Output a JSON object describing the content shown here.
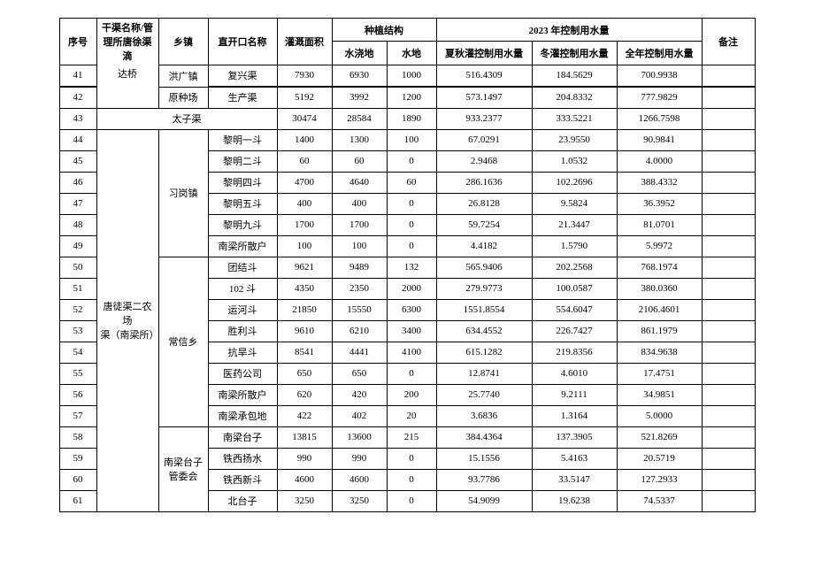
{
  "headers": {
    "seq": "序号",
    "mgr_line1": "干渠名称/管",
    "mgr_line2": "理所唐徐渠滴",
    "mgr_line3": "达桥",
    "town": "乡镇",
    "canal": "直开口名称",
    "area": "灌溉面积",
    "plant_group": "种植结构",
    "sj": "水浇地",
    "sd": "水地",
    "ctrl_group": "2023 年控制用水量",
    "xq": "夏秋灌控制用水量",
    "dg": "冬灌控制用水量",
    "qn": "全年控制用水量",
    "note": "备注"
  },
  "town_41": "洪广镇",
  "town_42": "原种场",
  "taizi": "太子渠",
  "town_xg": "习岗镇",
  "town_cx": "常信乡",
  "town_nl1": "南梁台子",
  "town_nl2": "管委会",
  "mgr_tx1": "唐徒渠二农场",
  "mgr_tx2": "渠（南梁所）",
  "rows": [
    {
      "seq": "41",
      "canal": "复兴渠",
      "area": "7930",
      "sj": "6930",
      "sd": "1000",
      "xq": "516.4309",
      "dg": "184.5629",
      "qn": "700.9938"
    },
    {
      "seq": "42",
      "canal": "生产渠",
      "area": "5192",
      "sj": "3992",
      "sd": "1200",
      "xq": "573.1497",
      "dg": "204.8332",
      "qn": "777.9829"
    },
    {
      "seq": "43",
      "canal": "",
      "area": "30474",
      "sj": "28584",
      "sd": "1890",
      "xq": "933.2377",
      "dg": "333.5221",
      "qn": "1266.7598"
    },
    {
      "seq": "44",
      "canal": "黎明一斗",
      "area": "1400",
      "sj": "1300",
      "sd": "100",
      "xq": "67.0291",
      "dg": "23.9550",
      "qn": "90.9841"
    },
    {
      "seq": "45",
      "canal": "黎明二斗",
      "area": "60",
      "sj": "60",
      "sd": "0",
      "xq": "2.9468",
      "dg": "1.0532",
      "qn": "4.0000"
    },
    {
      "seq": "46",
      "canal": "黎明四斗",
      "area": "4700",
      "sj": "4640",
      "sd": "60",
      "xq": "286.1636",
      "dg": "102.2696",
      "qn": "388.4332"
    },
    {
      "seq": "47",
      "canal": "黎明五斗",
      "area": "400",
      "sj": "400",
      "sd": "0",
      "xq": "26.8128",
      "dg": "9.5824",
      "qn": "36.3952"
    },
    {
      "seq": "48",
      "canal": "黎明九斗",
      "area": "1700",
      "sj": "1700",
      "sd": "0",
      "xq": "59.7254",
      "dg": "21.3447",
      "qn": "81.0701"
    },
    {
      "seq": "49",
      "canal": "南梁所散户",
      "area": "100",
      "sj": "100",
      "sd": "0",
      "xq": "4.4182",
      "dg": "1.5790",
      "qn": "5.9972"
    },
    {
      "seq": "50",
      "canal": "团结斗",
      "area": "9621",
      "sj": "9489",
      "sd": "132",
      "xq": "565.9406",
      "dg": "202.2568",
      "qn": "768.1974"
    },
    {
      "seq": "51",
      "canal": "102 斗",
      "area": "4350",
      "sj": "2350",
      "sd": "2000",
      "xq": "279.9773",
      "dg": "100.0587",
      "qn": "380.0360"
    },
    {
      "seq": "52",
      "canal": "运河斗",
      "area": "21850",
      "sj": "15550",
      "sd": "6300",
      "xq": "1551.8554",
      "dg": "554.6047",
      "qn": "2106.4601"
    },
    {
      "seq": "53",
      "canal": "胜利斗",
      "area": "9610",
      "sj": "6210",
      "sd": "3400",
      "xq": "634.4552",
      "dg": "226.7427",
      "qn": "861.1979"
    },
    {
      "seq": "54",
      "canal": "抗旱斗",
      "area": "8541",
      "sj": "4441",
      "sd": "4100",
      "xq": "615.1282",
      "dg": "219.8356",
      "qn": "834.9638"
    },
    {
      "seq": "55",
      "canal": "医药公司",
      "area": "650",
      "sj": "650",
      "sd": "0",
      "xq": "12.8741",
      "dg": "4.6010",
      "qn": "17.4751"
    },
    {
      "seq": "56",
      "canal": "南梁所散户",
      "area": "620",
      "sj": "420",
      "sd": "200",
      "xq": "25.7740",
      "dg": "9.2111",
      "qn": "34.9851"
    },
    {
      "seq": "57",
      "canal": "南梁承包地",
      "area": "422",
      "sj": "402",
      "sd": "20",
      "xq": "3.6836",
      "dg": "1.3164",
      "qn": "5.0000"
    },
    {
      "seq": "58",
      "canal": "南梁台子",
      "area": "13815",
      "sj": "13600",
      "sd": "215",
      "xq": "384.4364",
      "dg": "137.3905",
      "qn": "521.8269"
    },
    {
      "seq": "59",
      "canal": "铁西扬水",
      "area": "990",
      "sj": "990",
      "sd": "0",
      "xq": "15.1556",
      "dg": "5.4163",
      "qn": "20.5719"
    },
    {
      "seq": "60",
      "canal": "铁西新斗",
      "area": "4600",
      "sj": "4600",
      "sd": "0",
      "xq": "93.7786",
      "dg": "33.5147",
      "qn": "127.2933"
    },
    {
      "seq": "61",
      "canal": "北台子",
      "area": "3250",
      "sj": "3250",
      "sd": "0",
      "xq": "54.9099",
      "dg": "19.6238",
      "qn": "74.5337"
    }
  ]
}
